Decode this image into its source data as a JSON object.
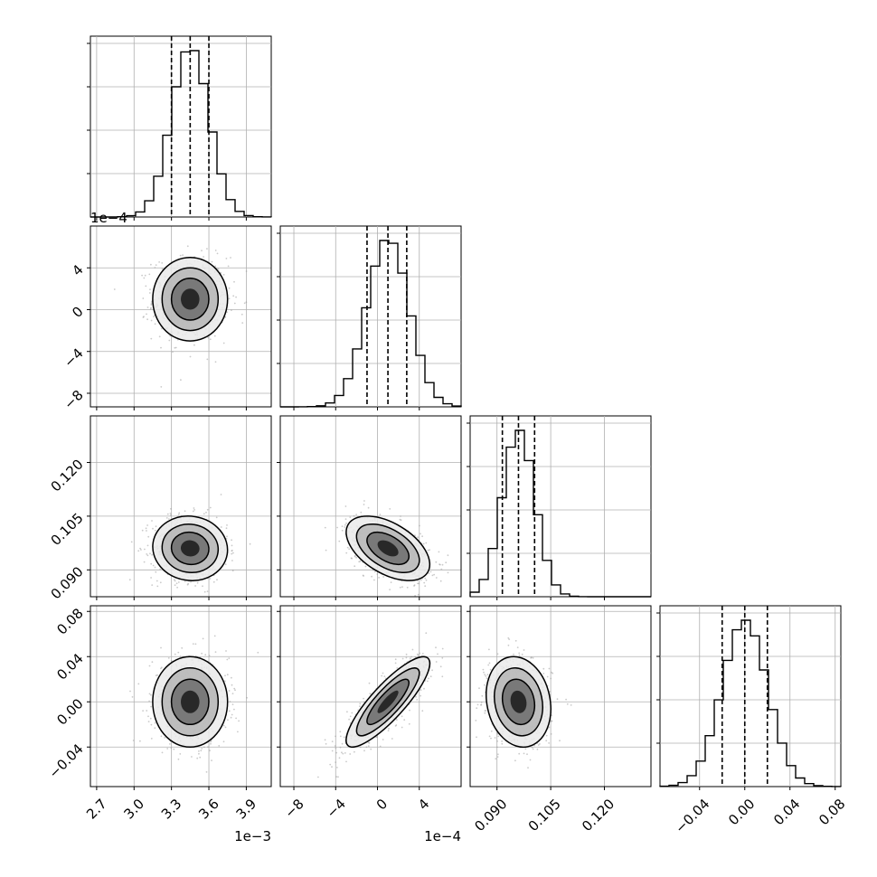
{
  "chart_data": {
    "type": "corner",
    "n_params": 4,
    "params": [
      {
        "ticks": [
          2.7,
          3.0,
          3.3,
          3.6,
          3.9
        ],
        "tick_labels": [
          "2.7",
          "3.0",
          "3.3",
          "3.6",
          "3.9"
        ],
        "offset": "1e−3",
        "range": [
          2.65,
          4.1
        ]
      },
      {
        "ticks": [
          -8,
          -4,
          0,
          4
        ],
        "tick_labels": [
          "−8",
          "−4",
          "0",
          "4"
        ],
        "offset": "1e−4",
        "range": [
          -9.3,
          8.0
        ]
      },
      {
        "ticks": [
          0.09,
          0.105,
          0.12
        ],
        "tick_labels": [
          "0.090",
          "0.105",
          "0.120"
        ],
        "offset": "",
        "range": [
          0.0825,
          0.133
        ]
      },
      {
        "ticks": [
          -0.04,
          0.0,
          0.04,
          0.08
        ],
        "tick_labels": [
          "−0.04",
          "0.00",
          "0.04",
          "0.08"
        ],
        "offset": "",
        "range": [
          -0.075,
          0.085
        ]
      }
    ],
    "stats": [
      {
        "mean": 3.45,
        "sigma": 0.15,
        "q": [
          3.3,
          3.45,
          3.6
        ]
      },
      {
        "mean": 1.0,
        "sigma": 2.0,
        "q": [
          -1.0,
          1.0,
          2.8
        ]
      },
      {
        "mean": 0.096,
        "sigma": 0.0045,
        "q": [
          0.0915,
          0.096,
          0.1005
        ]
      },
      {
        "mean": 0.0,
        "sigma": 0.02,
        "q": [
          -0.02,
          0.0,
          0.02
        ]
      }
    ],
    "correlations": [
      [
        1.0,
        0.0,
        -0.05,
        0.0
      ],
      [
        0.0,
        1.0,
        -0.5,
        0.85
      ],
      [
        -0.05,
        -0.5,
        1.0,
        -0.15
      ],
      [
        0.0,
        0.85,
        -0.15,
        1.0
      ]
    ],
    "quantile_lines": [
      0.16,
      0.5,
      0.84
    ],
    "contour_sigma_levels": [
      0.5,
      1.0,
      1.5,
      2.0
    ],
    "grid": true,
    "colors": {
      "line": "#000000",
      "quantile": "#000000",
      "points": "#9e9e9e",
      "grid": "#b0b0b0"
    }
  }
}
